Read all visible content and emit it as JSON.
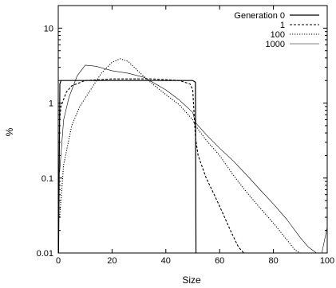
{
  "chart_data": {
    "type": "line",
    "title": "",
    "xlabel": "Size",
    "ylabel": "%",
    "xlim": [
      0,
      100
    ],
    "ylim": [
      0.01,
      20
    ],
    "yscale": "log",
    "x_ticks": [
      0,
      20,
      40,
      60,
      80,
      100
    ],
    "y_ticks": [
      0.01,
      0.1,
      1,
      10
    ],
    "y_tick_labels": [
      "0.01",
      "0.1",
      "1",
      "10"
    ],
    "grid": false,
    "legend_position": "top-right",
    "series": [
      {
        "name": "Generation 0",
        "style": "solid",
        "points": [
          [
            0.1,
            0.01
          ],
          [
            0.6,
            1.8
          ],
          [
            1,
            2.0
          ],
          [
            50,
            2.0
          ],
          [
            51,
            1.9
          ],
          [
            51.2,
            0.01
          ]
        ]
      },
      {
        "name": "1",
        "style": "dashed",
        "points": [
          [
            0.5,
            0.6
          ],
          [
            1,
            0.9
          ],
          [
            3,
            1.4
          ],
          [
            5,
            1.7
          ],
          [
            10,
            2.0
          ],
          [
            20,
            2.1
          ],
          [
            35,
            2.1
          ],
          [
            45,
            2.0
          ],
          [
            49,
            1.8
          ],
          [
            50,
            1.5
          ],
          [
            51,
            0.35
          ],
          [
            52,
            0.2
          ],
          [
            55,
            0.1
          ],
          [
            58,
            0.06
          ],
          [
            61,
            0.035
          ],
          [
            64,
            0.02
          ],
          [
            67,
            0.012
          ],
          [
            69,
            0.01
          ]
        ]
      },
      {
        "name": "100",
        "style": "dotted",
        "points": [
          [
            0.5,
            0.03
          ],
          [
            2,
            0.15
          ],
          [
            5,
            0.5
          ],
          [
            8,
            0.9
          ],
          [
            12,
            1.5
          ],
          [
            16,
            2.5
          ],
          [
            20,
            3.5
          ],
          [
            23,
            3.9
          ],
          [
            26,
            3.6
          ],
          [
            30,
            2.6
          ],
          [
            35,
            1.8
          ],
          [
            40,
            1.3
          ],
          [
            45,
            0.95
          ],
          [
            50,
            0.6
          ],
          [
            51,
            0.5
          ],
          [
            55,
            0.32
          ],
          [
            60,
            0.2
          ],
          [
            65,
            0.11
          ],
          [
            70,
            0.065
          ],
          [
            75,
            0.04
          ],
          [
            80,
            0.025
          ],
          [
            85,
            0.015
          ],
          [
            88,
            0.011
          ],
          [
            90,
            0.01
          ]
        ]
      },
      {
        "name": "1000",
        "style": "fine",
        "points": [
          [
            0.5,
            0.12
          ],
          [
            2,
            0.6
          ],
          [
            4,
            1.2
          ],
          [
            7,
            2.3
          ],
          [
            10,
            3.2
          ],
          [
            14,
            3.1
          ],
          [
            20,
            2.7
          ],
          [
            26,
            2.5
          ],
          [
            32,
            2.2
          ],
          [
            40,
            1.5
          ],
          [
            45,
            1.1
          ],
          [
            50,
            0.75
          ],
          [
            51,
            0.55
          ],
          [
            55,
            0.38
          ],
          [
            60,
            0.25
          ],
          [
            65,
            0.17
          ],
          [
            70,
            0.11
          ],
          [
            75,
            0.07
          ],
          [
            80,
            0.045
          ],
          [
            85,
            0.028
          ],
          [
            90,
            0.016
          ],
          [
            93,
            0.012
          ],
          [
            96,
            0.01
          ],
          [
            98,
            0.01
          ],
          [
            100,
            0.022
          ]
        ]
      }
    ]
  }
}
